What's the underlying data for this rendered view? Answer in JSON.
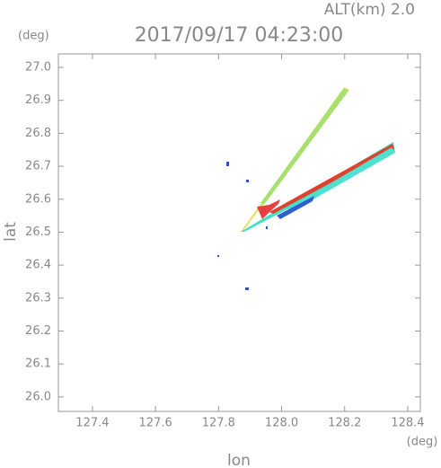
{
  "chart_data": {
    "type": "map",
    "title": "2017/09/17 04:23:00",
    "subtitle": "ALT(km) 2.0",
    "x_label": "lon",
    "y_label": "lat",
    "x_unit": "(deg)",
    "y_unit": "(deg)",
    "xlim": [
      127.292,
      128.44
    ],
    "ylim": [
      25.956,
      27.041
    ],
    "xticks": [
      127.4,
      127.6,
      127.8,
      {
        "value": 128,
        "label": "128.0"
      },
      128.2,
      128.4
    ],
    "yticks": [
      {
        "value": 26,
        "label": "26.0"
      },
      26.1,
      26.2,
      26.3,
      26.4,
      26.5,
      26.6,
      26.7,
      26.8,
      26.9,
      {
        "value": 27,
        "label": "27.0"
      }
    ]
  }
}
